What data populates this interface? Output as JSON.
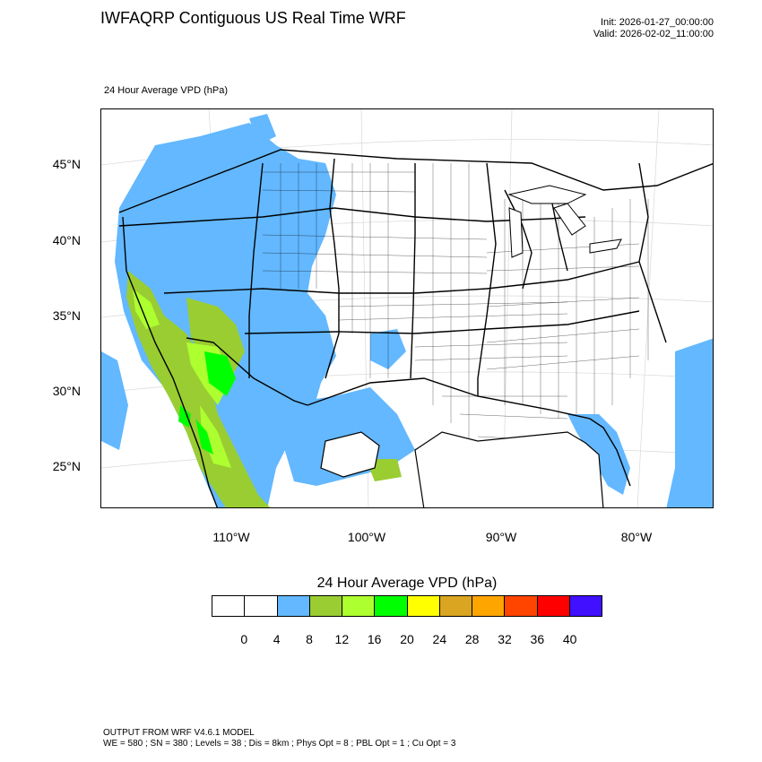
{
  "header": {
    "title": "IWFAQRP Contiguous US Real Time WRF",
    "init": "Init: 2026-01-27_00:00:00",
    "valid": "Valid: 2026-02-02_11:00:00"
  },
  "field_label": "24 Hour Average VPD   (hPa)",
  "axes": {
    "lat_labels": [
      "45°N",
      "40°N",
      "35°N",
      "30°N",
      "25°N"
    ],
    "lon_labels": [
      "110°W",
      "100°W",
      "90°W",
      "80°W"
    ]
  },
  "colorbar": {
    "title": "24 Hour Average VPD  (hPa)",
    "colors": [
      "#ffffff",
      "#ffffff",
      "#63b8ff",
      "#9acd32",
      "#adff2f",
      "#00ff00",
      "#ffff00",
      "#daa520",
      "#ffa500",
      "#ff4500",
      "#ff0000",
      "#4010ff"
    ],
    "labels": [
      "0",
      "4",
      "8",
      "12",
      "16",
      "20",
      "24",
      "28",
      "32",
      "36",
      "40"
    ]
  },
  "footer": {
    "line1": "OUTPUT FROM WRF V4.6.1 MODEL",
    "line2": "WE = 580 ; SN = 380 ; Levels = 38 ; Dis = 8km ; Phys Opt = 8 ; PBL Opt = 1 ; Cu Opt = 3"
  },
  "map_colors": {
    "blue": "#63b8ff",
    "olive": "#9acd32",
    "lime": "#adff2f",
    "green": "#00ff00"
  }
}
